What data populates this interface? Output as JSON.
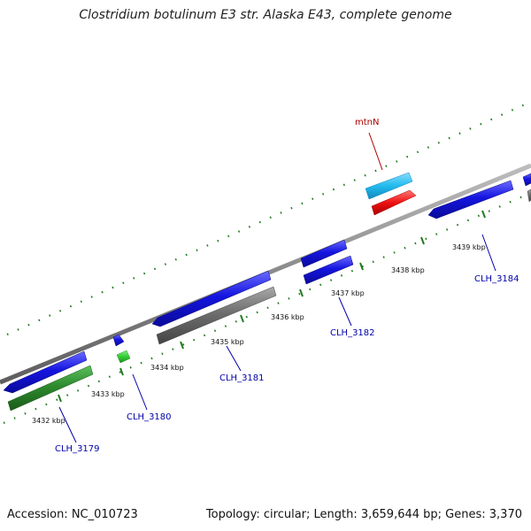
{
  "title": "Clostridium botulinum E3 str. Alaska E43, complete genome",
  "footer": {
    "accession": "Accession: NC_010723",
    "summary": "Topology: circular; Length: 3,659,644 bp; Genes: 3,370"
  },
  "tick_labels": [
    "3432 kbp",
    "3433 kbp",
    "3434 kbp",
    "3435 kbp",
    "3436 kbp",
    "3437 kbp",
    "3438 kbp",
    "3439 kbp"
  ],
  "gene_labels": [
    "CLH_3179",
    "CLH_3180",
    "CLH_3181",
    "CLH_3182",
    "CLH_3184"
  ],
  "feature_labels": [
    "mtnN"
  ],
  "colors": {
    "backbone": "#8a8a8a",
    "tick": "#1f7a1f",
    "gene_blue": "#1515e0",
    "gene_green_dark": "#2e8b2e",
    "gene_green_light": "#33cc33",
    "gene_gray": "#6e6e6e",
    "gene_cyan": "#22bbee",
    "gene_red": "#ee1111"
  }
}
